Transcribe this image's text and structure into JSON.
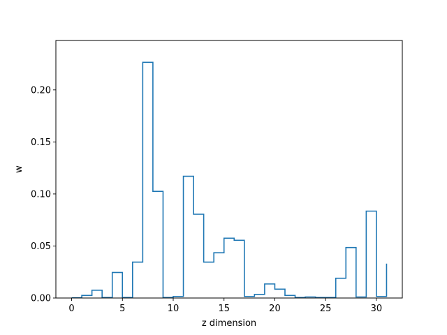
{
  "chart_data": {
    "type": "line",
    "style": "step-histogram",
    "title": "",
    "xlabel": "z dimension",
    "ylabel": "w",
    "xlim": [
      -1.55,
      32.55
    ],
    "ylim": [
      0,
      0.2475
    ],
    "x_ticks": [
      0,
      5,
      10,
      15,
      20,
      25,
      30
    ],
    "x_tick_labels": [
      "0",
      "5",
      "10",
      "15",
      "20",
      "25",
      "30"
    ],
    "y_ticks": [
      0,
      0.05,
      0.1,
      0.15,
      0.2
    ],
    "y_tick_labels": [
      "0.00",
      "0.05",
      "0.10",
      "0.15",
      "0.20"
    ],
    "grid": false,
    "legend": "none",
    "line_color": "#1f77b4",
    "series": [
      {
        "x": [
          0,
          1,
          2,
          3,
          4,
          5,
          6,
          7,
          8,
          9,
          10,
          11,
          12,
          13,
          14,
          15,
          16,
          17,
          18,
          19,
          20,
          21,
          22,
          23,
          24,
          25,
          26,
          27,
          28,
          29,
          30,
          31
        ],
        "values": [
          0.0002,
          0.0025,
          0.0075,
          0.0005,
          0.0245,
          0.0005,
          0.0345,
          0.2265,
          0.1025,
          0.0005,
          0.0015,
          0.117,
          0.0805,
          0.0345,
          0.0435,
          0.0575,
          0.0555,
          0.0015,
          0.0035,
          0.0135,
          0.0085,
          0.0025,
          0.0005,
          0.001,
          0.0005,
          0.0005,
          0.019,
          0.0485,
          0.001,
          0.0835,
          0.0015,
          0.033
        ]
      }
    ]
  }
}
